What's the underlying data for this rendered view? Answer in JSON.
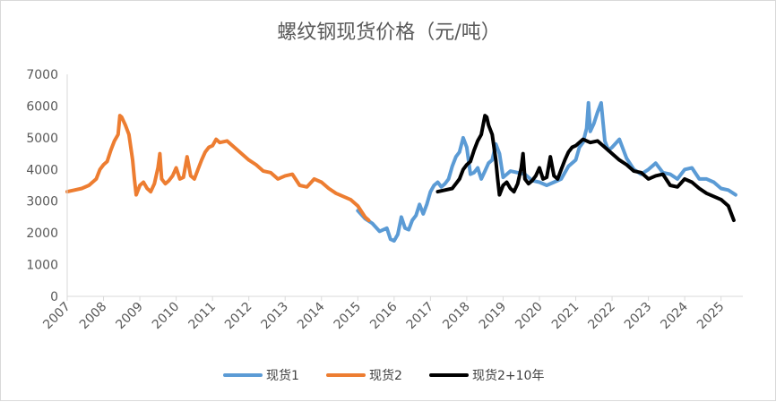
{
  "chart_data": {
    "type": "line",
    "title": "螺纹钢现货价格（元/吨）",
    "xlabel": "",
    "ylabel": "",
    "ylim": [
      0,
      7000
    ],
    "yticks": [
      0,
      1000,
      2000,
      3000,
      4000,
      5000,
      6000,
      7000
    ],
    "xlim": [
      2007.0,
      2025.6
    ],
    "xticks": [
      2007,
      2008,
      2009,
      2010,
      2011,
      2012,
      2013,
      2014,
      2015,
      2016,
      2017,
      2018,
      2019,
      2020,
      2021,
      2022,
      2023,
      2024,
      2025
    ],
    "grid": false,
    "legend_position": "bottom",
    "series": [
      {
        "name": "现货1",
        "color": "#5b9bd5",
        "x": [
          2015.0,
          2015.2,
          2015.4,
          2015.6,
          2015.8,
          2015.9,
          2016.0,
          2016.1,
          2016.2,
          2016.3,
          2016.4,
          2016.5,
          2016.6,
          2016.7,
          2016.8,
          2016.9,
          2017.0,
          2017.1,
          2017.2,
          2017.3,
          2017.4,
          2017.5,
          2017.6,
          2017.7,
          2017.8,
          2017.9,
          2018.0,
          2018.1,
          2018.2,
          2018.3,
          2018.4,
          2018.5,
          2018.6,
          2018.7,
          2018.8,
          2018.9,
          2019.0,
          2019.2,
          2019.4,
          2019.6,
          2019.8,
          2020.0,
          2020.2,
          2020.4,
          2020.6,
          2020.8,
          2021.0,
          2021.1,
          2021.2,
          2021.3,
          2021.35,
          2021.4,
          2021.5,
          2021.6,
          2021.7,
          2021.75,
          2021.8,
          2021.9,
          2022.0,
          2022.2,
          2022.4,
          2022.6,
          2022.8,
          2023.0,
          2023.2,
          2023.4,
          2023.6,
          2023.8,
          2024.0,
          2024.2,
          2024.4,
          2024.6,
          2024.8,
          2025.0,
          2025.2,
          2025.4
        ],
        "y": [
          2700,
          2450,
          2300,
          2050,
          2150,
          1800,
          1750,
          1950,
          2500,
          2150,
          2100,
          2400,
          2550,
          2900,
          2600,
          2900,
          3300,
          3500,
          3600,
          3450,
          3550,
          3700,
          4100,
          4400,
          4550,
          5000,
          4700,
          3850,
          3900,
          4050,
          3700,
          3950,
          4200,
          4300,
          4800,
          4500,
          3750,
          3950,
          3900,
          3850,
          3650,
          3600,
          3500,
          3600,
          3700,
          4100,
          4300,
          4700,
          4850,
          5300,
          6100,
          5200,
          5450,
          5800,
          6100,
          5500,
          4900,
          4600,
          4700,
          4950,
          4350,
          4000,
          3850,
          4000,
          4200,
          3900,
          3850,
          3700,
          4000,
          4050,
          3700,
          3700,
          3600,
          3400,
          3350,
          3200
        ]
      },
      {
        "name": "现货2",
        "color": "#ed7d31",
        "x": [
          2007.0,
          2007.2,
          2007.4,
          2007.6,
          2007.8,
          2007.9,
          2008.0,
          2008.1,
          2008.2,
          2008.3,
          2008.4,
          2008.45,
          2008.5,
          2008.6,
          2008.7,
          2008.8,
          2008.85,
          2008.9,
          2009.0,
          2009.1,
          2009.2,
          2009.3,
          2009.4,
          2009.5,
          2009.55,
          2009.6,
          2009.7,
          2009.8,
          2009.9,
          2010.0,
          2010.1,
          2010.2,
          2010.3,
          2010.4,
          2010.5,
          2010.6,
          2010.7,
          2010.8,
          2010.9,
          2011.0,
          2011.1,
          2011.2,
          2011.4,
          2011.6,
          2011.8,
          2012.0,
          2012.2,
          2012.4,
          2012.6,
          2012.8,
          2013.0,
          2013.2,
          2013.4,
          2013.6,
          2013.8,
          2014.0,
          2014.2,
          2014.4,
          2014.6,
          2014.8,
          2015.0,
          2015.2,
          2015.3
        ],
        "y": [
          3300,
          3350,
          3400,
          3500,
          3700,
          4000,
          4150,
          4250,
          4600,
          4900,
          5100,
          5700,
          5650,
          5400,
          5100,
          4300,
          3700,
          3200,
          3500,
          3600,
          3400,
          3300,
          3550,
          4050,
          4500,
          3700,
          3550,
          3650,
          3800,
          4050,
          3700,
          3750,
          4400,
          3800,
          3700,
          4000,
          4300,
          4550,
          4700,
          4750,
          4950,
          4850,
          4900,
          4700,
          4500,
          4300,
          4150,
          3950,
          3900,
          3700,
          3800,
          3850,
          3500,
          3450,
          3700,
          3600,
          3400,
          3250,
          3150,
          3050,
          2850,
          2500,
          2400
        ]
      },
      {
        "name": "现货2+10年",
        "color": "#000000",
        "x": [
          2017.2,
          2017.4,
          2017.6,
          2017.8,
          2017.9,
          2018.0,
          2018.1,
          2018.2,
          2018.3,
          2018.4,
          2018.5,
          2018.55,
          2018.6,
          2018.7,
          2018.8,
          2018.85,
          2018.9,
          2019.0,
          2019.1,
          2019.2,
          2019.3,
          2019.4,
          2019.5,
          2019.55,
          2019.6,
          2019.7,
          2019.8,
          2019.9,
          2020.0,
          2020.1,
          2020.2,
          2020.3,
          2020.4,
          2020.5,
          2020.6,
          2020.7,
          2020.8,
          2020.9,
          2021.0,
          2021.2,
          2021.4,
          2021.6,
          2021.8,
          2022.0,
          2022.2,
          2022.4,
          2022.6,
          2022.8,
          2023.0,
          2023.2,
          2023.4,
          2023.6,
          2023.8,
          2024.0,
          2024.2,
          2024.4,
          2024.6,
          2024.8,
          2025.0,
          2025.2,
          2025.35
        ],
        "y": [
          3300,
          3350,
          3400,
          3700,
          4000,
          4150,
          4250,
          4600,
          4900,
          5100,
          5700,
          5650,
          5400,
          5100,
          4300,
          3700,
          3200,
          3500,
          3600,
          3400,
          3300,
          3550,
          4050,
          4500,
          3700,
          3550,
          3650,
          3800,
          4050,
          3700,
          3750,
          4400,
          3800,
          3700,
          4000,
          4300,
          4550,
          4700,
          4750,
          4950,
          4850,
          4900,
          4700,
          4500,
          4300,
          4150,
          3950,
          3900,
          3700,
          3800,
          3850,
          3500,
          3450,
          3700,
          3600,
          3400,
          3250,
          3150,
          3050,
          2850,
          2400
        ]
      }
    ]
  }
}
